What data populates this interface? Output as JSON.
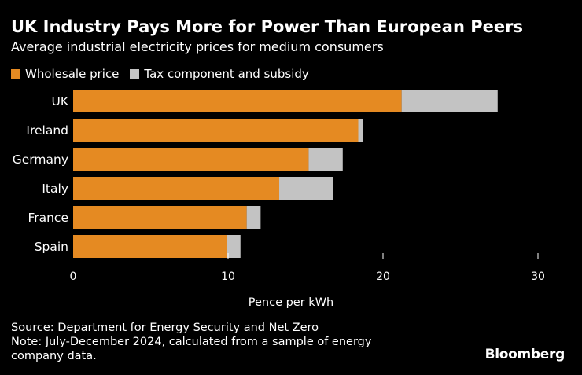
{
  "title": "UK Industry Pays More for Power Than European Peers",
  "subtitle": "Average industrial electricity prices for medium consumers",
  "legend": {
    "wholesale": "Wholesale price",
    "tax": "Tax component and subsidy"
  },
  "colors": {
    "wholesale": "#E58A22",
    "tax": "#C3C3C3",
    "background": "#000000"
  },
  "chart_data": {
    "type": "bar",
    "orientation": "horizontal",
    "stacked": true,
    "categories": [
      "UK",
      "Ireland",
      "Germany",
      "Italy",
      "France",
      "Spain"
    ],
    "series": [
      {
        "name": "Wholesale price",
        "values": [
          21.2,
          18.4,
          15.2,
          13.3,
          11.2,
          9.9
        ]
      },
      {
        "name": "Tax component and subsidy",
        "values": [
          6.2,
          0.3,
          2.2,
          3.5,
          0.9,
          0.9
        ]
      }
    ],
    "xlabel": "Pence per kWh",
    "xlim": [
      0,
      30
    ],
    "xticks": [
      0,
      10,
      20,
      30
    ]
  },
  "source": "Source: Department for Energy Security and Net Zero",
  "note": "Note: July-December 2024, calculated from a sample of energy company data.",
  "brand": "Bloomberg"
}
